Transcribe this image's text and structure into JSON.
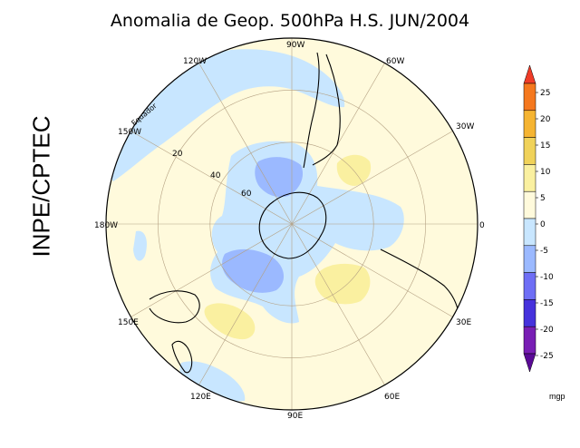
{
  "title": "Anomalia de Geop. 500hPa H.S. JUN/2004",
  "watermark": "INPE/CPTEC",
  "equator_label": "Equador",
  "latitude_labels": [
    "20",
    "40",
    "60"
  ],
  "longitude_labels": [
    "90W",
    "60W",
    "30W",
    "0",
    "30E",
    "60E",
    "90E",
    "120E",
    "150E",
    "180W",
    "150W",
    "120W"
  ],
  "legend": {
    "unit": "mgp",
    "ticks": [
      "25",
      "20",
      "15",
      "10",
      "5",
      "0",
      "-5",
      "-10",
      "-15",
      "-20",
      "-25"
    ],
    "colors": [
      "#f03c28",
      "#f5781e",
      "#f5b432",
      "#f0d25a",
      "#faf0a0",
      "#fffadc",
      "#c8e6ff",
      "#9bb9ff",
      "#6e6ef5",
      "#4632dc",
      "#781eb4",
      "#5a0a96"
    ]
  },
  "fill_colors": {
    "neutral": "#fffadc",
    "neg5": "#c8e6ff",
    "neg10": "#9bb9ff",
    "pos5": "#faf0a0",
    "land": "#000000",
    "grid": "#b4a082"
  }
}
